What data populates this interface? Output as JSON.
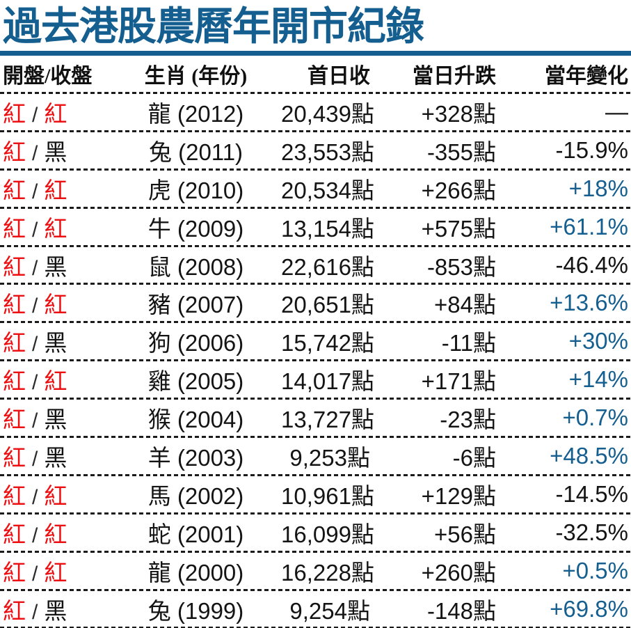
{
  "colors": {
    "title_blue": "#155f90",
    "positive_blue": "#155f90",
    "red": "#ec1013",
    "text_black": "#141414"
  },
  "chart_data": {
    "type": "table",
    "title": "過去港股農曆年開市紀錄",
    "columns": [
      "開盤/收盤",
      "生肖 (年份)",
      "首日收",
      "當日升跌",
      "當年變化"
    ],
    "open_close_separator": "/",
    "rows": [
      {
        "open": "紅",
        "open_style": "red",
        "close": "紅",
        "close_style": "red",
        "zodiac_year": "龍 (2012)",
        "first_day_close": "20,439點",
        "day_change": "+328點",
        "year_change": "—",
        "year_change_style": "black"
      },
      {
        "open": "紅",
        "open_style": "red",
        "close": "黑",
        "close_style": "black",
        "zodiac_year": "兔 (2011)",
        "first_day_close": "23,553點",
        "day_change": "-355點",
        "year_change": "-15.9%",
        "year_change_style": "black"
      },
      {
        "open": "紅",
        "open_style": "red",
        "close": "紅",
        "close_style": "red",
        "zodiac_year": "虎 (2010)",
        "first_day_close": "20,534點",
        "day_change": "+266點",
        "year_change": "+18%",
        "year_change_style": "blue"
      },
      {
        "open": "紅",
        "open_style": "red",
        "close": "紅",
        "close_style": "red",
        "zodiac_year": "牛 (2009)",
        "first_day_close": "13,154點",
        "day_change": "+575點",
        "year_change": "+61.1%",
        "year_change_style": "blue"
      },
      {
        "open": "紅",
        "open_style": "red",
        "close": "黑",
        "close_style": "black",
        "zodiac_year": "鼠 (2008)",
        "first_day_close": "22,616點",
        "day_change": "-853點",
        "year_change": "-46.4%",
        "year_change_style": "black"
      },
      {
        "open": "紅",
        "open_style": "red",
        "close": "紅",
        "close_style": "red",
        "zodiac_year": "豬 (2007)",
        "first_day_close": "20,651點",
        "day_change": "+84點",
        "year_change": "+13.6%",
        "year_change_style": "blue"
      },
      {
        "open": "紅",
        "open_style": "red",
        "close": "黑",
        "close_style": "black",
        "zodiac_year": "狗 (2006)",
        "first_day_close": "15,742點",
        "day_change": "-11點",
        "year_change": "+30%",
        "year_change_style": "blue"
      },
      {
        "open": "紅",
        "open_style": "red",
        "close": "紅",
        "close_style": "red",
        "zodiac_year": "雞 (2005)",
        "first_day_close": "14,017點",
        "day_change": "+171點",
        "year_change": "+14%",
        "year_change_style": "blue"
      },
      {
        "open": "紅",
        "open_style": "red",
        "close": "黑",
        "close_style": "black",
        "zodiac_year": "猴 (2004)",
        "first_day_close": "13,727點",
        "day_change": "-23點",
        "year_change": "+0.7%",
        "year_change_style": "blue"
      },
      {
        "open": "紅",
        "open_style": "red",
        "close": "黑",
        "close_style": "black",
        "zodiac_year": "羊 (2003)",
        "first_day_close": "9,253點",
        "day_change": "-6點",
        "year_change": "+48.5%",
        "year_change_style": "blue"
      },
      {
        "open": "紅",
        "open_style": "red",
        "close": "紅",
        "close_style": "red",
        "zodiac_year": "馬 (2002)",
        "first_day_close": "10,961點",
        "day_change": "+129點",
        "year_change": "-14.5%",
        "year_change_style": "black"
      },
      {
        "open": "紅",
        "open_style": "red",
        "close": "紅",
        "close_style": "red",
        "zodiac_year": "蛇 (2001)",
        "first_day_close": "16,099點",
        "day_change": "+56點",
        "year_change": "-32.5%",
        "year_change_style": "black"
      },
      {
        "open": "紅",
        "open_style": "red",
        "close": "紅",
        "close_style": "red",
        "zodiac_year": "龍 (2000)",
        "first_day_close": "16,228點",
        "day_change": "+260點",
        "year_change": "+0.5%",
        "year_change_style": "blue"
      },
      {
        "open": "紅",
        "open_style": "red",
        "close": "黑",
        "close_style": "black",
        "zodiac_year": "兔 (1999)",
        "first_day_close": "9,254點",
        "day_change": "-148點",
        "year_change": "+69.8%",
        "year_change_style": "blue"
      }
    ]
  }
}
